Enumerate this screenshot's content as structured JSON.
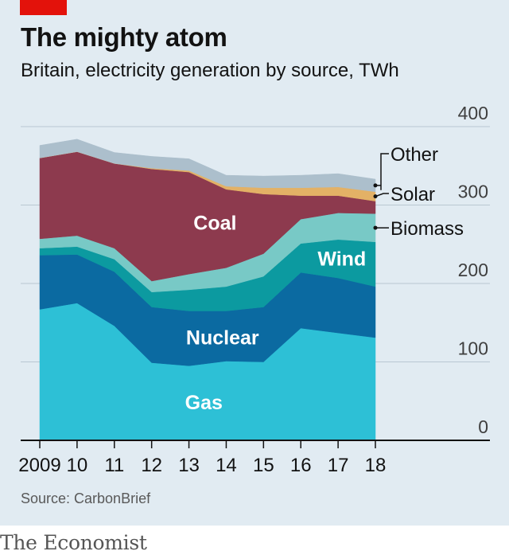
{
  "header": {
    "title": "The mighty atom",
    "subtitle": "Britain, electricity generation by source, TWh"
  },
  "footer": {
    "source": "Source: CarbonBrief",
    "brand": "The Economist"
  },
  "colors": {
    "background": "#e1ebf2",
    "brand_red": "#e3120b",
    "gas": "#2dc0d6",
    "nuclear": "#0b6aa1",
    "wind": "#0c9aa0",
    "biomass": "#78c9c6",
    "coal": "#8d3a4e",
    "solar": "#e3b166",
    "other": "#acbfcc"
  },
  "chart_data": {
    "type": "area",
    "stacked": true,
    "x": [
      2009,
      2010,
      2011,
      2012,
      2013,
      2014,
      2015,
      2016,
      2017,
      2018
    ],
    "x_tick_labels": [
      "2009",
      "10",
      "11",
      "12",
      "13",
      "14",
      "15",
      "16",
      "17",
      "18"
    ],
    "ylim": [
      0,
      400
    ],
    "y_ticks": [
      0,
      100,
      200,
      300,
      400
    ],
    "y_tick_labels": [
      "0",
      "100",
      "200",
      "300",
      "400"
    ],
    "grid": true,
    "series": [
      {
        "name": "Gas",
        "color": "#2dc0d6",
        "label_color": "#ffffff",
        "values": [
          167,
          175,
          146,
          99,
          95,
          101,
          100,
          143,
          137,
          131
        ]
      },
      {
        "name": "Nuclear",
        "color": "#0b6aa1",
        "label_color": "#ffffff",
        "values": [
          69,
          62,
          69,
          71,
          70,
          64,
          70,
          71,
          70,
          65
        ]
      },
      {
        "name": "Wind",
        "color": "#0c9aa0",
        "label_color": "#ffffff",
        "values": [
          9,
          10,
          16,
          19,
          27,
          31,
          39,
          37,
          49,
          57
        ]
      },
      {
        "name": "Biomass",
        "color": "#78c9c6",
        "label_color": "#121212",
        "values": [
          12,
          14,
          14,
          14,
          20,
          24,
          29,
          31,
          34,
          36
        ]
      },
      {
        "name": "Coal",
        "color": "#8d3a4e",
        "label_color": "#ffffff",
        "values": [
          103,
          107,
          108,
          143,
          130,
          100,
          76,
          30,
          22,
          16
        ]
      },
      {
        "name": "Solar",
        "color": "#e3b166",
        "label_color": "#121212",
        "values": [
          0,
          0,
          0,
          1,
          2,
          4,
          8,
          10,
          11,
          12
        ]
      },
      {
        "name": "Other",
        "color": "#acbfcc",
        "label_color": "#121212",
        "values": [
          16,
          16,
          14,
          15,
          15,
          14,
          15,
          16,
          17,
          16
        ]
      }
    ]
  }
}
